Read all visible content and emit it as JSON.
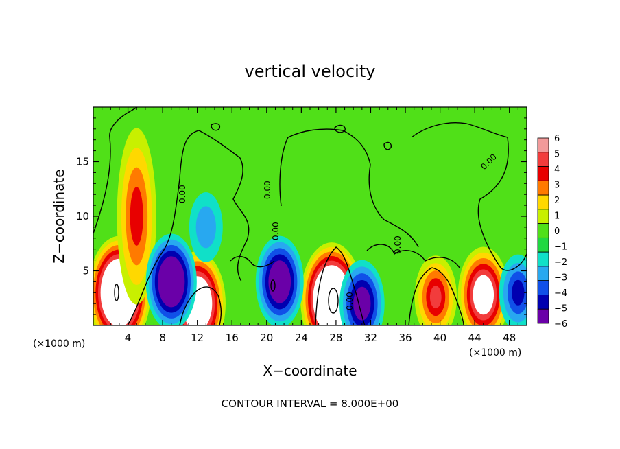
{
  "chart_data": {
    "type": "heatmap",
    "title": "vertical velocity",
    "xlabel": "X−coordinate",
    "ylabel": "Z−coordinate",
    "x_unit_left": "(×1000 m)",
    "x_unit_right": "(×1000 m)",
    "xlim": [
      0,
      50
    ],
    "ylim": [
      0,
      20
    ],
    "x_ticks": [
      4,
      8,
      12,
      16,
      20,
      24,
      28,
      32,
      36,
      40,
      44,
      48
    ],
    "y_ticks": [
      5,
      10,
      15
    ],
    "colorbar": {
      "levels": [
        6,
        5,
        4,
        3,
        2,
        1,
        0,
        -1,
        -2,
        -3,
        -4,
        -5,
        -6
      ],
      "labels": [
        "6",
        "5",
        "4",
        "3",
        "2",
        "1",
        "0",
        "−1",
        "−2",
        "−3",
        "−4",
        "−5",
        "−6"
      ],
      "colors": [
        "#f29a9a",
        "#f23c3c",
        "#e80000",
        "#ff7a00",
        "#ffd800",
        "#c8f000",
        "#50e018",
        "#20d840",
        "#10e0c8",
        "#28a8f0",
        "#1050e8",
        "#0000b0",
        "#6a00a8"
      ]
    },
    "background_value": 0.4,
    "features": [
      {
        "kind": "updraft",
        "x": 3,
        "z": 3,
        "peak": 12
      },
      {
        "kind": "updraft",
        "x": 5,
        "z": 10,
        "peak": 4
      },
      {
        "kind": "updraft",
        "x": 12,
        "z": 2,
        "peak": 10
      },
      {
        "kind": "updraft",
        "x": 27.5,
        "z": 2.4,
        "peak": 12
      },
      {
        "kind": "updraft",
        "x": 39.5,
        "z": 2.6,
        "peak": 5
      },
      {
        "kind": "updraft",
        "x": 45,
        "z": 2.8,
        "peak": 8
      },
      {
        "kind": "downdraft",
        "x": 9,
        "z": 4,
        "peak": -8
      },
      {
        "kind": "downdraft",
        "x": 13,
        "z": 9,
        "peak": -2
      },
      {
        "kind": "downdraft",
        "x": 21.5,
        "z": 4,
        "peak": -7
      },
      {
        "kind": "downdraft",
        "x": 31,
        "z": 2,
        "peak": -6
      },
      {
        "kind": "downdraft",
        "x": 49,
        "z": 3,
        "peak": -3.5
      }
    ],
    "contour_labels": [
      "0.00",
      "0.00",
      "0.00",
      "0.00",
      "0.00",
      "0.00"
    ],
    "footer": "CONTOUR INTERVAL = 8.000E+00"
  }
}
